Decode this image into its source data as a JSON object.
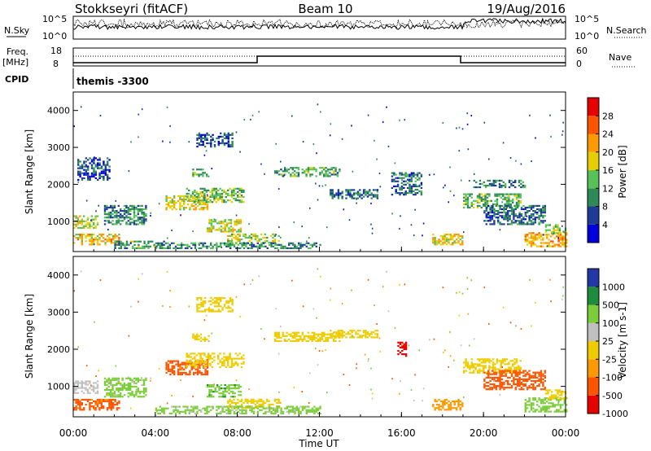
{
  "header": {
    "station": "Stokkseyri (fitACF)",
    "beam": "Beam 10",
    "date": "19/Aug/2016"
  },
  "summary": {
    "nsky_label": "N.Sky",
    "nsky_ticks": [
      "10^5",
      "10^0"
    ],
    "nsearch_label": "N.Search",
    "nsearch_ticks": [
      "10^5",
      "10^0"
    ],
    "freq_label_1": "Freq.",
    "freq_label_2": "[MHz]",
    "freq_ticks": [
      "18",
      "8"
    ],
    "nave_label": "Nave",
    "nave_ticks": [
      "60",
      "0"
    ],
    "cpid_label": "CPID",
    "cpid_value": "themis -3300"
  },
  "colors": {
    "power": [
      "#0000dc",
      "#1e3c96",
      "#2e8b57",
      "#57c257",
      "#e6cf00",
      "#ff9900",
      "#ff5500",
      "#e60000"
    ],
    "velocity": [
      "#2238a6",
      "#1e8c3c",
      "#7ccd3a",
      "#c0c0c0",
      "#eecc00",
      "#ff9900",
      "#ff5500",
      "#e60000"
    ],
    "ground_gray": "#c0c0c0"
  },
  "chart_data": [
    {
      "type": "heatmap",
      "panel": "power",
      "ylabel": "Slant Range [km]",
      "yticks": [
        "1000",
        "2000",
        "3000",
        "4000"
      ],
      "ylim": [
        180,
        4500
      ],
      "xlim_hours": [
        0,
        24
      ],
      "colorbar_label": "Power [dB]",
      "colorbar_ticks": [
        "4",
        "8",
        "12",
        "16",
        "20",
        "24",
        "28"
      ],
      "colorbar_range": [
        0,
        32
      ],
      "patches": [
        {
          "t": [
            0.0,
            1.2
          ],
          "r": [
            800,
            1150
          ],
          "p": 17
        },
        {
          "t": [
            0.0,
            2.2
          ],
          "r": [
            350,
            650
          ],
          "p": 20
        },
        {
          "t": [
            0.2,
            1.8
          ],
          "r": [
            2100,
            2700
          ],
          "p": 6
        },
        {
          "t": [
            1.5,
            3.5
          ],
          "r": [
            900,
            1400
          ],
          "p": 10
        },
        {
          "t": [
            2.0,
            4.5
          ],
          "r": [
            250,
            450
          ],
          "p": 12
        },
        {
          "t": [
            4.5,
            6.5
          ],
          "r": [
            1300,
            1700
          ],
          "p": 19
        },
        {
          "t": [
            5.5,
            8.3
          ],
          "r": [
            1500,
            1900
          ],
          "p": 14
        },
        {
          "t": [
            6.5,
            8.2
          ],
          "r": [
            700,
            1050
          ],
          "p": 17
        },
        {
          "t": [
            6.0,
            7.8
          ],
          "r": [
            3000,
            3400
          ],
          "p": 6
        },
        {
          "t": [
            5.8,
            6.6
          ],
          "r": [
            2200,
            2400
          ],
          "p": 13
        },
        {
          "t": [
            7.5,
            10.0
          ],
          "r": [
            400,
            650
          ],
          "p": 16
        },
        {
          "t": [
            4.0,
            12.0
          ],
          "r": [
            250,
            400
          ],
          "p": 10
        },
        {
          "t": [
            9.8,
            13.0
          ],
          "r": [
            2200,
            2450
          ],
          "p": 12
        },
        {
          "t": [
            12.5,
            14.8
          ],
          "r": [
            1600,
            1850
          ],
          "p": 8
        },
        {
          "t": [
            15.5,
            17.0
          ],
          "r": [
            1700,
            2300
          ],
          "p": 8
        },
        {
          "t": [
            17.5,
            19.0
          ],
          "r": [
            350,
            650
          ],
          "p": 19
        },
        {
          "t": [
            19.0,
            21.8
          ],
          "r": [
            1350,
            1750
          ],
          "p": 13
        },
        {
          "t": [
            19.5,
            22.0
          ],
          "r": [
            1900,
            2100
          ],
          "p": 9
        },
        {
          "t": [
            20.0,
            23.0
          ],
          "r": [
            900,
            1400
          ],
          "p": 8
        },
        {
          "t": [
            22.0,
            24.0
          ],
          "r": [
            300,
            700
          ],
          "p": 21
        },
        {
          "t": [
            23.0,
            24.0
          ],
          "r": [
            650,
            900
          ],
          "p": 15
        }
      ]
    },
    {
      "type": "heatmap",
      "panel": "velocity",
      "ylabel": "Slant Range [km]",
      "yticks": [
        "1000",
        "2000",
        "3000",
        "4000"
      ],
      "ylim": [
        180,
        4500
      ],
      "xlim_hours": [
        0,
        24
      ],
      "xticks": [
        "00:00",
        "04:00",
        "08:00",
        "12:00",
        "16:00",
        "20:00",
        "00:00"
      ],
      "xlabel": "Time UT",
      "colorbar_label": "Velocity [m s-1]",
      "colorbar_ticks": [
        "1000",
        "500",
        "100",
        "25",
        "-25",
        "-100",
        "-500",
        "-1000"
      ],
      "patches": [
        {
          "t": [
            0.0,
            2.2
          ],
          "r": [
            350,
            650
          ],
          "v": -150
        },
        {
          "t": [
            0.0,
            1.2
          ],
          "r": [
            800,
            1150
          ],
          "v": 60
        },
        {
          "t": [
            1.5,
            3.5
          ],
          "r": [
            700,
            1200
          ],
          "v": 150
        },
        {
          "t": [
            4.5,
            6.5
          ],
          "r": [
            1300,
            1700
          ],
          "v": -150
        },
        {
          "t": [
            5.5,
            8.3
          ],
          "r": [
            1500,
            1900
          ],
          "v": 0
        },
        {
          "t": [
            6.5,
            8.2
          ],
          "r": [
            700,
            1050
          ],
          "v": 400
        },
        {
          "t": [
            6.0,
            7.8
          ],
          "r": [
            3000,
            3400
          ],
          "v": 0
        },
        {
          "t": [
            5.8,
            6.6
          ],
          "r": [
            2200,
            2400
          ],
          "v": 0
        },
        {
          "t": [
            7.5,
            10.0
          ],
          "r": [
            400,
            650
          ],
          "v": 0
        },
        {
          "t": [
            4.0,
            12.0
          ],
          "r": [
            250,
            450
          ],
          "v": 150
        },
        {
          "t": [
            9.8,
            13.0
          ],
          "r": [
            2200,
            2450
          ],
          "v": 0
        },
        {
          "t": [
            12.5,
            14.8
          ],
          "r": [
            2300,
            2500
          ],
          "v": 0
        },
        {
          "t": [
            15.8,
            16.2
          ],
          "r": [
            1800,
            2200
          ],
          "v": -800
        },
        {
          "t": [
            17.5,
            19.0
          ],
          "r": [
            350,
            650
          ],
          "v": -60
        },
        {
          "t": [
            19.0,
            21.8
          ],
          "r": [
            1350,
            1750
          ],
          "v": 0
        },
        {
          "t": [
            20.0,
            23.0
          ],
          "r": [
            900,
            1400
          ],
          "v": -300
        },
        {
          "t": [
            22.0,
            24.0
          ],
          "r": [
            300,
            700
          ],
          "v": 250
        },
        {
          "t": [
            23.0,
            24.0
          ],
          "r": [
            650,
            900
          ],
          "v": 0
        }
      ]
    }
  ]
}
